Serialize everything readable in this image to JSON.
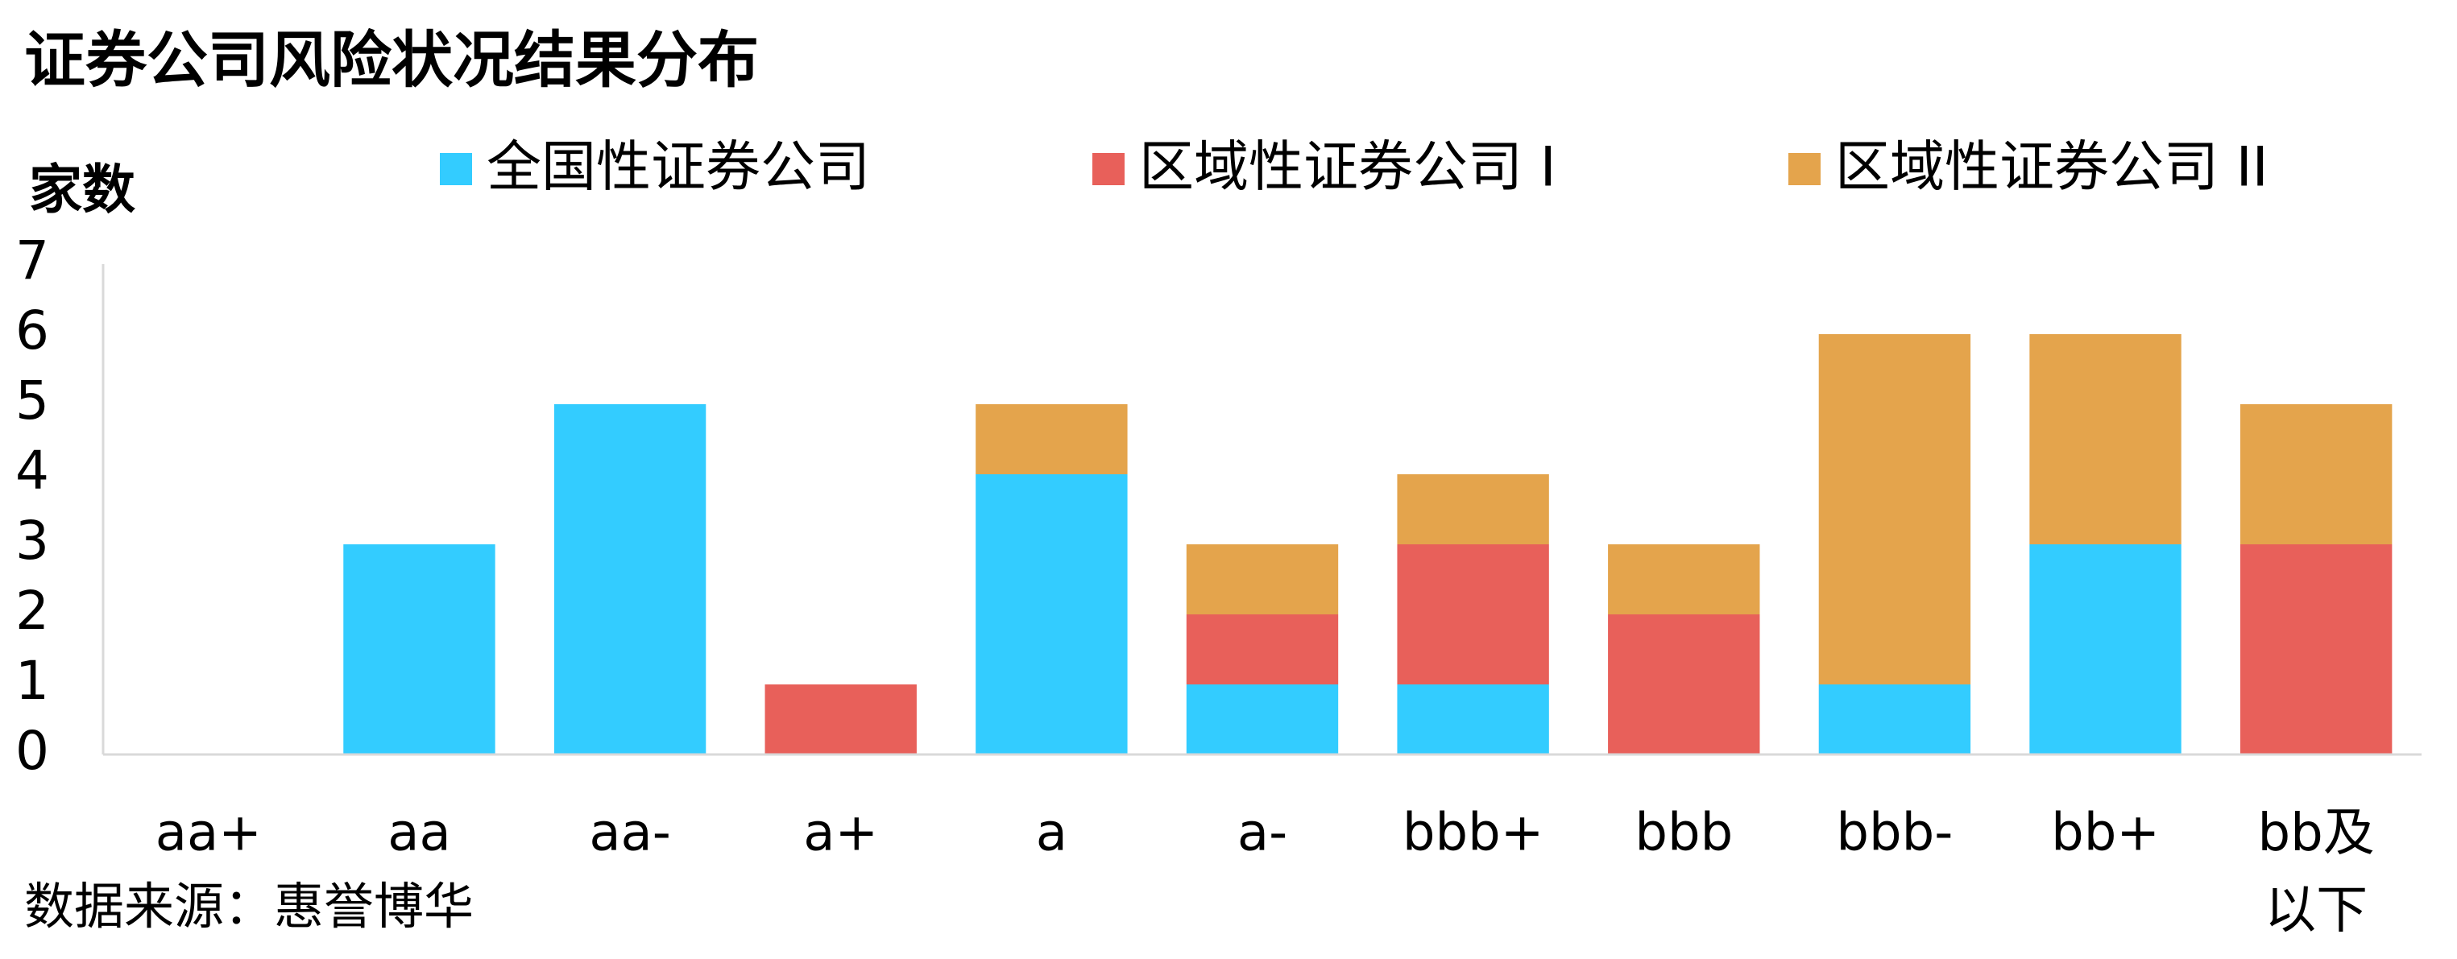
{
  "chart_data": {
    "type": "stacked_bar",
    "title": "证券公司风险状况结果分布",
    "y_label": "家数",
    "source": "数据来源：惠誉博华",
    "categories": [
      "aa+",
      "aa",
      "aa-",
      "a+",
      "a",
      "a-",
      "bbb+",
      "bbb",
      "bbb-",
      "bb+",
      "bb及以下"
    ],
    "series": [
      {
        "name": "全国性证券公司",
        "color": "#33ccff",
        "values": [
          0,
          3,
          5,
          0,
          4,
          1,
          1,
          0,
          1,
          3,
          0
        ]
      },
      {
        "name": "区域性证券公司 I",
        "color": "#e8605a",
        "values": [
          0,
          0,
          0,
          1,
          0,
          1,
          2,
          2,
          0,
          0,
          3
        ]
      },
      {
        "name": "区域性证券公司 II",
        "color": "#e4a44c",
        "values": [
          0,
          0,
          0,
          0,
          1,
          1,
          1,
          1,
          5,
          3,
          2
        ]
      }
    ],
    "ylim": [
      0,
      7
    ],
    "yticks": [
      0,
      1,
      2,
      3,
      4,
      5,
      6,
      7
    ],
    "grid": false,
    "legend": "top"
  }
}
